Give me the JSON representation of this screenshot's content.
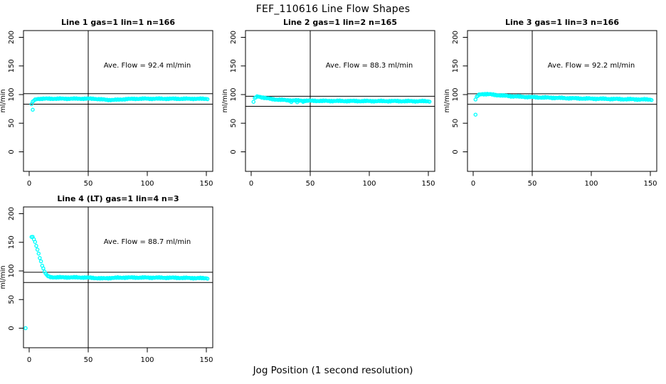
{
  "page_title": "FEF_110616  Line Flow Shapes",
  "x_axis_label": "Jog Position (1 second resolution)",
  "colors": {
    "point": "#00FFFF",
    "axis": "#000000",
    "text": "#000000",
    "background": "#FFFFFF"
  },
  "chart_data": [
    {
      "type": "scatter",
      "title": "Line 1 gas=1 lin=1 n=166",
      "annotation": "Ave. Flow =  92.4  ml/min",
      "ave_flow_ml_min": 92.4,
      "n_points": 166,
      "ylabel": "ml/min",
      "xlim": [
        0,
        151
      ],
      "ylim": [
        0,
        200
      ],
      "xticks": [
        0,
        50,
        100,
        150
      ],
      "yticks": [
        0,
        50,
        100,
        150,
        200
      ],
      "ref_lines_h": [
        101.6,
        83.2
      ],
      "ref_line_v": 50,
      "series": {
        "name": "flow",
        "keypoints": [
          [
            2,
            83.5
          ],
          [
            3,
            87
          ],
          [
            4,
            89.5
          ],
          [
            5,
            91
          ],
          [
            6,
            92
          ],
          [
            8,
            92.6
          ],
          [
            12,
            92.8
          ],
          [
            55,
            92.8
          ],
          [
            60,
            91.8
          ],
          [
            68,
            90.6
          ],
          [
            75,
            91
          ],
          [
            82,
            92.2
          ],
          [
            95,
            92.8
          ],
          [
            151,
            92.6
          ]
        ],
        "outliers": [
          [
            3,
            73.5
          ]
        ],
        "jitter": 0.9,
        "step": 1
      }
    },
    {
      "type": "scatter",
      "title": "Line 2 gas=1 lin=2 n=165",
      "annotation": "Ave. Flow =  88.3  ml/min",
      "ave_flow_ml_min": 88.3,
      "n_points": 165,
      "ylabel": "ml/min",
      "xlim": [
        0,
        151
      ],
      "ylim": [
        0,
        200
      ],
      "xticks": [
        0,
        50,
        100,
        150
      ],
      "yticks": [
        0,
        50,
        100,
        150,
        200
      ],
      "ref_lines_h": [
        97.1,
        79.5
      ],
      "ref_line_v": 50,
      "series": {
        "name": "flow",
        "keypoints": [
          [
            2,
            87.5
          ],
          [
            3,
            93
          ],
          [
            4,
            95.3
          ],
          [
            5,
            96.3
          ],
          [
            6,
            96.7
          ],
          [
            8,
            95.9
          ],
          [
            10,
            94.9
          ],
          [
            13,
            93.6
          ],
          [
            16,
            92.6
          ],
          [
            20,
            91.6
          ],
          [
            25,
            90.8
          ],
          [
            31,
            90.1
          ],
          [
            38,
            89.6
          ],
          [
            48,
            89.2
          ],
          [
            62,
            88.9
          ],
          [
            85,
            88.7
          ],
          [
            120,
            88.6
          ],
          [
            151,
            88.4
          ]
        ],
        "outliers": [
          [
            34,
            87
          ],
          [
            39,
            86.7
          ],
          [
            44,
            87.2
          ]
        ],
        "jitter": 1.0,
        "step": 1
      }
    },
    {
      "type": "scatter",
      "title": "Line 3 gas=1 lin=3 n=166",
      "annotation": "Ave. Flow =  92.2  ml/min",
      "ave_flow_ml_min": 92.2,
      "n_points": 166,
      "ylabel": "ml/min",
      "xlim": [
        0,
        151
      ],
      "ylim": [
        0,
        200
      ],
      "xticks": [
        0,
        50,
        100,
        150
      ],
      "yticks": [
        0,
        50,
        100,
        150,
        200
      ],
      "ref_lines_h": [
        101.4,
        83.0
      ],
      "ref_line_v": 50,
      "series": {
        "name": "flow",
        "keypoints": [
          [
            2,
            91.5
          ],
          [
            3,
            95.5
          ],
          [
            4,
            98
          ],
          [
            5,
            99.5
          ],
          [
            6,
            100.4
          ],
          [
            8,
            101
          ],
          [
            11,
            100.9
          ],
          [
            15,
            100.2
          ],
          [
            20,
            99.2
          ],
          [
            27,
            97.9
          ],
          [
            35,
            96.8
          ],
          [
            45,
            95.9
          ],
          [
            55,
            95.2
          ],
          [
            68,
            94.4
          ],
          [
            82,
            93.6
          ],
          [
            100,
            92.9
          ],
          [
            118,
            92.3
          ],
          [
            135,
            91.8
          ],
          [
            151,
            91.3
          ]
        ],
        "outliers": [
          [
            2,
            65
          ]
        ],
        "jitter": 1.1,
        "step": 1
      }
    },
    {
      "type": "scatter",
      "title": "Line 4 (LT) gas=1 lin=4 n=3",
      "annotation": "Ave. Flow =  88.7  ml/min",
      "ave_flow_ml_min": 88.7,
      "n_points": 3,
      "ylabel": "ml/min",
      "xlim": [
        0,
        151
      ],
      "ylim": [
        0,
        200
      ],
      "xticks": [
        0,
        50,
        100,
        150
      ],
      "yticks": [
        0,
        50,
        100,
        150,
        200
      ],
      "ref_lines_h": [
        97.6,
        79.8
      ],
      "ref_line_v": 50,
      "series": {
        "name": "flow",
        "keypoints": [
          [
            2,
            159.5
          ],
          [
            3,
            158.5
          ],
          [
            4,
            155.5
          ],
          [
            5,
            150
          ],
          [
            6,
            144
          ],
          [
            7,
            137.5
          ],
          [
            8,
            130.5
          ],
          [
            9,
            123.5
          ],
          [
            10,
            116.5
          ],
          [
            11,
            110
          ],
          [
            12,
            104
          ],
          [
            13,
            99
          ],
          [
            14,
            95
          ],
          [
            15,
            92.3
          ],
          [
            16,
            90.7
          ],
          [
            17,
            89.8
          ],
          [
            19,
            89.2
          ],
          [
            23,
            88.9
          ],
          [
            30,
            88.8
          ],
          [
            45,
            88.6
          ],
          [
            55,
            87.8
          ],
          [
            62,
            86.9
          ],
          [
            68,
            87.6
          ],
          [
            80,
            88.4
          ],
          [
            100,
            88.4
          ],
          [
            125,
            88
          ],
          [
            151,
            87.2
          ]
        ],
        "outliers": [
          [
            -3,
            0
          ]
        ],
        "jitter": 1.0,
        "step": 1
      }
    }
  ]
}
